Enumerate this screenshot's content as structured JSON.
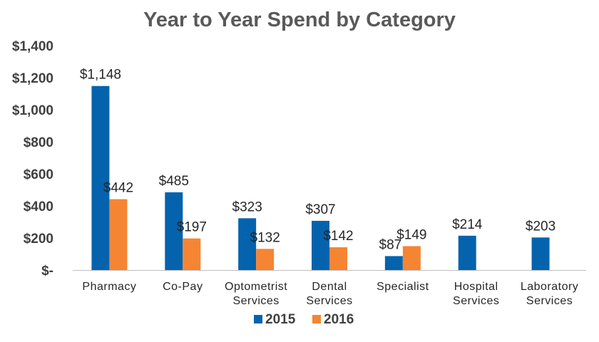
{
  "chart_data": {
    "type": "bar",
    "title": "Year to Year Spend by Category",
    "categories": [
      [
        "Pharmacy"
      ],
      [
        "Co-Pay"
      ],
      [
        "Optometrist",
        "Services"
      ],
      [
        "Dental",
        "Services"
      ],
      [
        "Specialist"
      ],
      [
        "Hospital",
        "Services"
      ],
      [
        "Laboratory",
        "Services"
      ]
    ],
    "series": [
      {
        "name": "2015",
        "color": "#0563AD",
        "values": [
          1148,
          485,
          323,
          307,
          87,
          214,
          203
        ],
        "labels": [
          "$1,148",
          "$485",
          "$323",
          "$307",
          "$87",
          "$214",
          "$203"
        ]
      },
      {
        "name": "2016",
        "color": "#F58532",
        "values": [
          442,
          197,
          132,
          142,
          149,
          null,
          null
        ],
        "labels": [
          "$442",
          "$197",
          "$132",
          "$142",
          "$149",
          null,
          null
        ]
      }
    ],
    "ylim": [
      0,
      1400
    ],
    "yticks": [
      0,
      200,
      400,
      600,
      800,
      1000,
      1200,
      1400
    ],
    "ytick_labels": [
      "$-",
      "$200",
      "$400",
      "$600",
      "$800",
      "$1,000",
      "$1,200",
      "$1,400"
    ],
    "xlabel": "",
    "ylabel": "",
    "grid": false,
    "legend": "bottom"
  }
}
